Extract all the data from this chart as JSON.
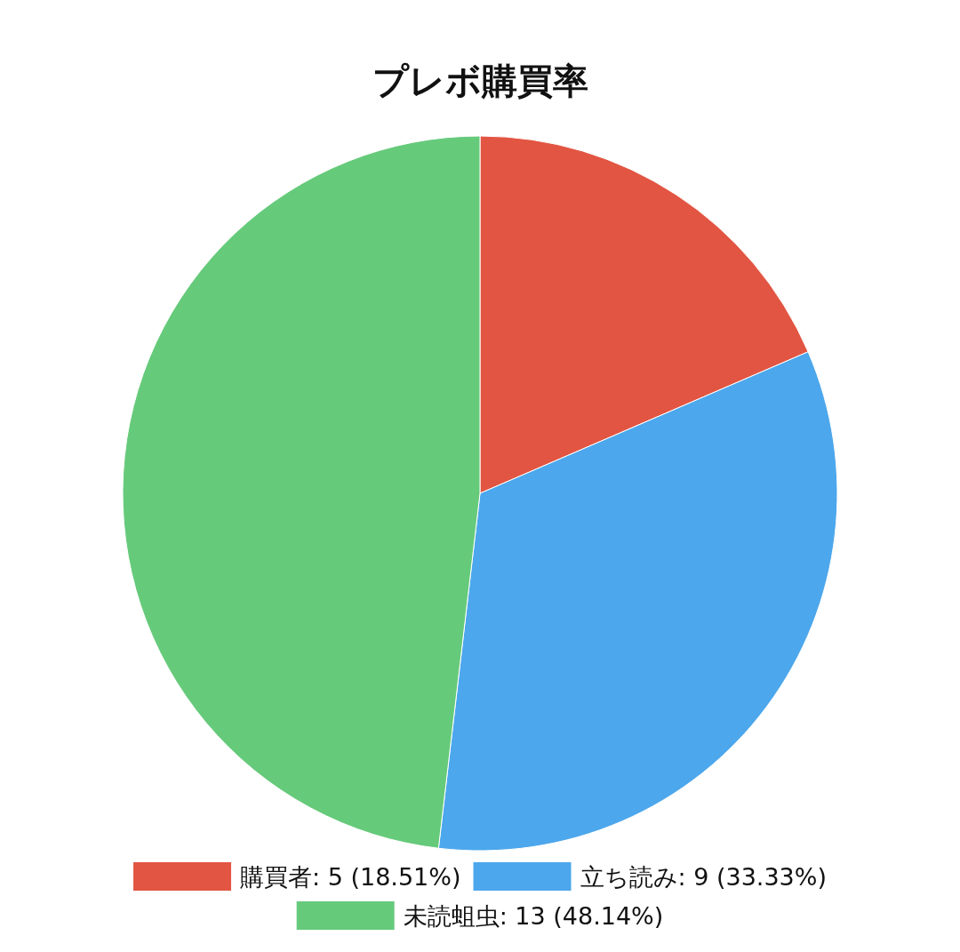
{
  "chart_data": {
    "type": "pie",
    "title": "プレボ購買率",
    "categories": [
      "購買者: 5 (18.51%)",
      "立ち読み: 9 (33.33%)",
      "未読蛆虫: 13 (48.14%)"
    ],
    "values": [
      5,
      9,
      13
    ],
    "colors": [
      "#e25542",
      "#4ca7ec",
      "#66ca7b"
    ],
    "legend": "bottom"
  }
}
